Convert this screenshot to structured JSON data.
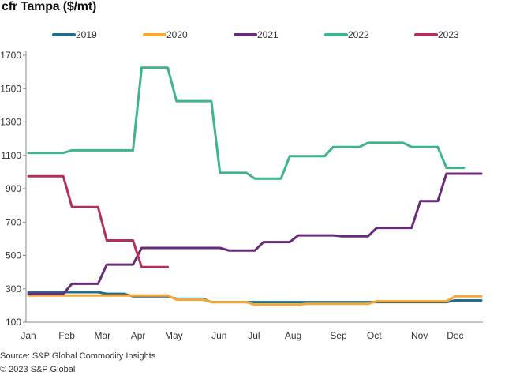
{
  "chart_data": {
    "type": "line",
    "title": "cfr Tampa ($/mt)",
    "xlabel": "",
    "ylabel": "",
    "ylim": [
      100,
      1700
    ],
    "yticks": [
      100,
      300,
      500,
      700,
      900,
      1100,
      1300,
      1500,
      1700
    ],
    "xlim": [
      0,
      52
    ],
    "xticks": [
      {
        "label": "Jan",
        "x": 0
      },
      {
        "label": "Feb",
        "x": 4.4
      },
      {
        "label": "Mar",
        "x": 8.5
      },
      {
        "label": "Apr",
        "x": 12.6
      },
      {
        "label": "May",
        "x": 16.7
      },
      {
        "label": "Jun",
        "x": 21.9
      },
      {
        "label": "Jul",
        "x": 25.9
      },
      {
        "label": "Aug",
        "x": 30.4
      },
      {
        "label": "Sep",
        "x": 35.6
      },
      {
        "label": "Oct",
        "x": 39.7
      },
      {
        "label": "Nov",
        "x": 44.9
      },
      {
        "label": "Dec",
        "x": 49.0
      }
    ],
    "grid": false,
    "legend": "top",
    "series": [
      {
        "name": "2019",
        "color": "#1f6f8b",
        "points": [
          [
            0,
            280
          ],
          [
            3,
            280
          ],
          [
            8,
            280
          ],
          [
            9,
            270
          ],
          [
            11,
            270
          ],
          [
            12,
            255
          ],
          [
            16,
            255
          ],
          [
            17,
            240
          ],
          [
            20,
            240
          ],
          [
            21,
            220
          ],
          [
            48,
            220
          ],
          [
            49,
            230
          ],
          [
            52,
            230
          ]
        ]
      },
      {
        "name": "2020",
        "color": "#f5a833",
        "points": [
          [
            0,
            260
          ],
          [
            16,
            260
          ],
          [
            17,
            235
          ],
          [
            20,
            235
          ],
          [
            21,
            220
          ],
          [
            25,
            220
          ],
          [
            26,
            205
          ],
          [
            31,
            205
          ],
          [
            32,
            210
          ],
          [
            39,
            210
          ],
          [
            40,
            225
          ],
          [
            48,
            225
          ],
          [
            49,
            255
          ],
          [
            52,
            255
          ]
        ]
      },
      {
        "name": "2021",
        "color": "#6a2a7a",
        "points": [
          [
            0,
            270
          ],
          [
            4,
            270
          ],
          [
            5,
            330
          ],
          [
            8,
            330
          ],
          [
            9,
            445
          ],
          [
            12,
            445
          ],
          [
            13,
            545
          ],
          [
            22,
            545
          ],
          [
            23,
            530
          ],
          [
            26,
            530
          ],
          [
            27,
            580
          ],
          [
            30,
            580
          ],
          [
            31,
            620
          ],
          [
            35,
            620
          ],
          [
            36,
            615
          ],
          [
            39,
            615
          ],
          [
            40,
            665
          ],
          [
            44,
            665
          ],
          [
            45,
            825
          ],
          [
            47,
            825
          ],
          [
            48,
            990
          ],
          [
            52,
            990
          ]
        ]
      },
      {
        "name": "2022",
        "color": "#3eb489",
        "points": [
          [
            0,
            1115
          ],
          [
            4,
            1115
          ],
          [
            5,
            1130
          ],
          [
            12,
            1130
          ],
          [
            13,
            1625
          ],
          [
            16,
            1625
          ],
          [
            17,
            1425
          ],
          [
            21,
            1425
          ],
          [
            22,
            995
          ],
          [
            25,
            995
          ],
          [
            26,
            960
          ],
          [
            29,
            960
          ],
          [
            30,
            1095
          ],
          [
            34,
            1095
          ],
          [
            35,
            1150
          ],
          [
            38,
            1150
          ],
          [
            39,
            1175
          ],
          [
            43,
            1175
          ],
          [
            44,
            1150
          ],
          [
            47,
            1150
          ],
          [
            48,
            1025
          ],
          [
            50,
            1025
          ]
        ]
      },
      {
        "name": "2023",
        "color": "#b52e5a",
        "points": [
          [
            0,
            975
          ],
          [
            4,
            975
          ],
          [
            5,
            790
          ],
          [
            8,
            790
          ],
          [
            9,
            590
          ],
          [
            12,
            590
          ],
          [
            13,
            430
          ],
          [
            16,
            430
          ]
        ]
      }
    ]
  },
  "footer": {
    "source": "Source: S&P Global Commodity Insights",
    "copyright": "© 2023 S&P Global"
  }
}
